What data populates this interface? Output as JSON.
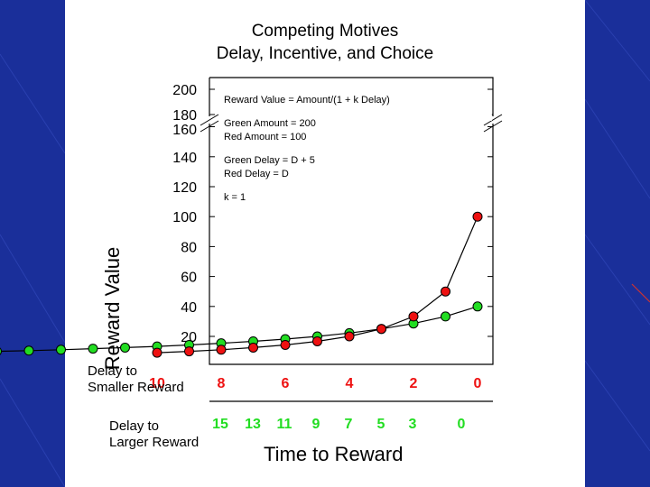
{
  "slide": {
    "title_line1": "Competing Motives",
    "title_line2": "Delay, Incentive, and Choice"
  },
  "annotations": {
    "formula": "Reward Value = Amount/(1 + k Delay)",
    "green_amount": "Green Amount = 200",
    "red_amount": "Red Amount = 100",
    "green_delay": "Green Delay = D + 5",
    "red_delay": "Red Delay = D",
    "k": "k = 1"
  },
  "rows": {
    "smaller_label": [
      "Delay to",
      "Smaller Reward"
    ],
    "smaller_values": [
      "10",
      "8",
      "6",
      "4",
      "2",
      "0"
    ],
    "larger_label": [
      "Delay to",
      "Larger Reward"
    ],
    "larger_values": [
      "15",
      "13",
      "11",
      "9",
      "7",
      "5",
      "3",
      "0"
    ]
  },
  "colors": {
    "background": "#1a2f9a",
    "green": "#22dd22",
    "red": "#ee1111"
  },
  "chart_data": {
    "type": "scatter",
    "xlabel": "Time to Reward",
    "ylabel": "Reward Value",
    "xlim": [
      0,
      16
    ],
    "ylim": [
      0,
      200
    ],
    "y_axis_break": [
      160,
      180
    ],
    "yticks": [
      20,
      40,
      60,
      80,
      100,
      120,
      140,
      160,
      180,
      200
    ],
    "grid": false,
    "series": [
      {
        "name": "Green",
        "color": "#22dd22",
        "x": [
          15,
          14,
          13,
          12,
          11,
          10,
          9,
          8,
          7,
          6,
          5,
          4,
          3,
          2,
          1,
          0
        ],
        "y": [
          10,
          10.5,
          11.1,
          11.8,
          12.5,
          13.3,
          14.3,
          15.4,
          16.7,
          18.2,
          20,
          22.2,
          25,
          28.6,
          33.3,
          40
        ]
      },
      {
        "name": "Red",
        "color": "#ee1111",
        "x": [
          10,
          9,
          8,
          7,
          6,
          5,
          4,
          3,
          2,
          1,
          0
        ],
        "y": [
          9.1,
          10,
          11.1,
          12.5,
          14.3,
          16.7,
          20,
          25,
          33.3,
          50,
          100
        ]
      }
    ]
  }
}
